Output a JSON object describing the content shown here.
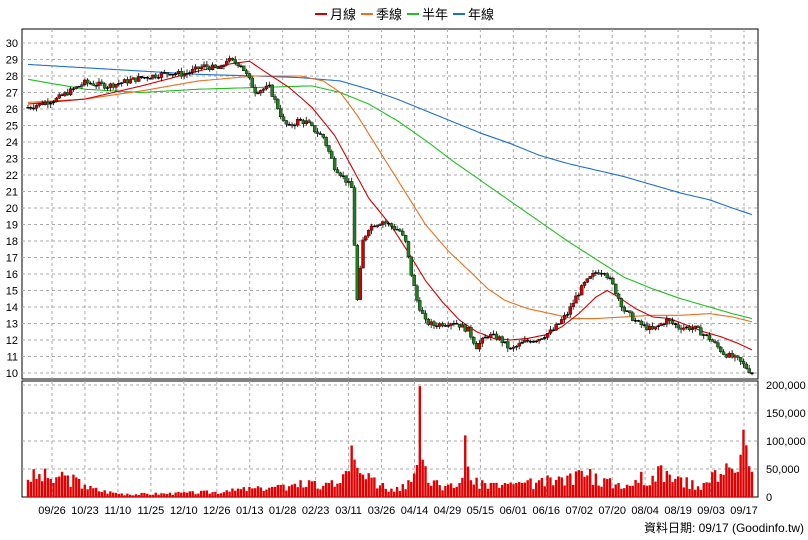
{
  "chart_data": {
    "type": "candlestick",
    "source_credit": "資料日期: 09/17 (Goodinfo.tw)",
    "legend": [
      {
        "name": "月線",
        "color": "#d40000"
      },
      {
        "name": "季線",
        "color": "#e87020"
      },
      {
        "name": "半年",
        "color": "#20c020"
      },
      {
        "name": "年線",
        "color": "#1f6fd0"
      }
    ],
    "price_axis": {
      "min": 10,
      "max": 30,
      "step": 1,
      "ticks": [
        "10",
        "11",
        "12",
        "13",
        "14",
        "15",
        "16",
        "17",
        "18",
        "19",
        "20",
        "21",
        "22",
        "23",
        "24",
        "25",
        "26",
        "27",
        "28",
        "29",
        "30"
      ]
    },
    "volume_axis": {
      "min": 0,
      "max": 200000,
      "ticks": [
        "0",
        "50,000",
        "100,000",
        "150,000",
        "200,000"
      ],
      "tick_values": [
        0,
        50000,
        100000,
        150000,
        200000
      ]
    },
    "grid": true,
    "legend_position": "top-center",
    "x_labels": [
      "09/26",
      "10/23",
      "11/10",
      "11/25",
      "12/10",
      "12/26",
      "01/13",
      "01/28",
      "02/23",
      "03/11",
      "03/26",
      "04/14",
      "04/29",
      "05/15",
      "06/01",
      "06/16",
      "07/02",
      "07/20",
      "08/04",
      "08/19",
      "09/03",
      "09/17"
    ],
    "price_close_path": [
      [
        0,
        26.1
      ],
      [
        10,
        26.6
      ],
      [
        20,
        27.6
      ],
      [
        28,
        27.4
      ],
      [
        40,
        27.9
      ],
      [
        50,
        28.2
      ],
      [
        55,
        28.1
      ],
      [
        62,
        28.6
      ],
      [
        68,
        28.4
      ],
      [
        70,
        29.0
      ],
      [
        75,
        28.7
      ],
      [
        80,
        27.1
      ],
      [
        85,
        27.3
      ],
      [
        88,
        26.1
      ],
      [
        90,
        25.2
      ],
      [
        92,
        24.9
      ],
      [
        95,
        25.3
      ],
      [
        98,
        25.2
      ],
      [
        101,
        24.7
      ],
      [
        104,
        24.3
      ],
      [
        108,
        22.5
      ],
      [
        111,
        21.9
      ],
      [
        114,
        21.2
      ],
      [
        116,
        14.4
      ],
      [
        118,
        18.0
      ],
      [
        120,
        18.8
      ],
      [
        122,
        19.0
      ],
      [
        125,
        19.2
      ],
      [
        128,
        18.9
      ],
      [
        131,
        18.6
      ],
      [
        133,
        17.9
      ],
      [
        135,
        16.0
      ],
      [
        137,
        14.4
      ],
      [
        140,
        13.1
      ],
      [
        143,
        12.9
      ],
      [
        146,
        13.0
      ],
      [
        150,
        13.1
      ],
      [
        155,
        12.6
      ],
      [
        158,
        11.6
      ],
      [
        162,
        12.3
      ],
      [
        166,
        12.1
      ],
      [
        170,
        11.4
      ],
      [
        175,
        11.9
      ],
      [
        180,
        12.1
      ],
      [
        185,
        12.6
      ],
      [
        190,
        13.6
      ],
      [
        193,
        14.6
      ],
      [
        196,
        15.4
      ],
      [
        200,
        16.1
      ],
      [
        203,
        16.2
      ],
      [
        206,
        15.3
      ],
      [
        210,
        13.8
      ],
      [
        215,
        13.0
      ],
      [
        220,
        12.6
      ],
      [
        225,
        13.2
      ],
      [
        229,
        12.8
      ],
      [
        235,
        12.7
      ],
      [
        240,
        12.1
      ],
      [
        245,
        11.2
      ],
      [
        250,
        10.8
      ],
      [
        255,
        10.0
      ]
    ],
    "ma_monthly": [
      [
        0,
        26.3
      ],
      [
        20,
        26.6
      ],
      [
        40,
        27.4
      ],
      [
        60,
        28.3
      ],
      [
        70,
        28.7
      ],
      [
        78,
        28.9
      ],
      [
        84,
        28.2
      ],
      [
        92,
        27.3
      ],
      [
        100,
        26.1
      ],
      [
        108,
        24.4
      ],
      [
        114,
        22.5
      ],
      [
        120,
        20.6
      ],
      [
        128,
        18.9
      ],
      [
        134,
        17.3
      ],
      [
        140,
        15.6
      ],
      [
        146,
        14.3
      ],
      [
        152,
        13.2
      ],
      [
        158,
        12.5
      ],
      [
        164,
        12.1
      ],
      [
        170,
        12.0
      ],
      [
        176,
        12.1
      ],
      [
        182,
        12.3
      ],
      [
        188,
        12.8
      ],
      [
        194,
        13.6
      ],
      [
        200,
        14.6
      ],
      [
        204,
        15.0
      ],
      [
        208,
        14.6
      ],
      [
        214,
        13.9
      ],
      [
        220,
        13.4
      ],
      [
        226,
        13.3
      ],
      [
        232,
        12.9
      ],
      [
        238,
        12.5
      ],
      [
        244,
        12.2
      ],
      [
        250,
        11.8
      ],
      [
        255,
        11.4
      ]
    ],
    "ma_quarterly": [
      [
        0,
        26.4
      ],
      [
        20,
        26.6
      ],
      [
        40,
        27.1
      ],
      [
        60,
        27.7
      ],
      [
        80,
        28.0
      ],
      [
        96,
        28.0
      ],
      [
        104,
        27.7
      ],
      [
        110,
        27.0
      ],
      [
        116,
        25.6
      ],
      [
        124,
        23.4
      ],
      [
        132,
        21.2
      ],
      [
        140,
        19.0
      ],
      [
        148,
        17.4
      ],
      [
        156,
        16.1
      ],
      [
        162,
        15.1
      ],
      [
        168,
        14.4
      ],
      [
        176,
        13.9
      ],
      [
        184,
        13.6
      ],
      [
        192,
        13.3
      ],
      [
        200,
        13.3
      ],
      [
        210,
        13.4
      ],
      [
        220,
        13.5
      ],
      [
        230,
        13.5
      ],
      [
        240,
        13.6
      ],
      [
        248,
        13.4
      ],
      [
        255,
        13.1
      ]
    ],
    "ma_halfyear": [
      [
        0,
        27.8
      ],
      [
        20,
        27.2
      ],
      [
        40,
        27.0
      ],
      [
        60,
        27.2
      ],
      [
        80,
        27.3
      ],
      [
        100,
        27.4
      ],
      [
        110,
        27.0
      ],
      [
        120,
        26.3
      ],
      [
        130,
        25.3
      ],
      [
        140,
        24.1
      ],
      [
        150,
        22.8
      ],
      [
        160,
        21.6
      ],
      [
        170,
        20.4
      ],
      [
        180,
        19.2
      ],
      [
        190,
        18.0
      ],
      [
        200,
        16.9
      ],
      [
        210,
        15.8
      ],
      [
        220,
        15.1
      ],
      [
        230,
        14.5
      ],
      [
        240,
        14.0
      ],
      [
        248,
        13.6
      ],
      [
        255,
        13.3
      ]
    ],
    "ma_yearly": [
      [
        0,
        28.7
      ],
      [
        20,
        28.5
      ],
      [
        40,
        28.3
      ],
      [
        60,
        28.1
      ],
      [
        80,
        28.0
      ],
      [
        96,
        27.9
      ],
      [
        110,
        27.7
      ],
      [
        120,
        27.2
      ],
      [
        130,
        26.6
      ],
      [
        140,
        25.9
      ],
      [
        150,
        25.2
      ],
      [
        160,
        24.5
      ],
      [
        170,
        23.9
      ],
      [
        180,
        23.2
      ],
      [
        190,
        22.7
      ],
      [
        200,
        22.3
      ],
      [
        210,
        21.9
      ],
      [
        220,
        21.4
      ],
      [
        230,
        20.9
      ],
      [
        240,
        20.5
      ],
      [
        248,
        20.0
      ],
      [
        255,
        19.6
      ]
    ],
    "volume_spikes": [
      [
        9,
        25000
      ],
      [
        12,
        45000
      ],
      [
        17,
        35000
      ],
      [
        20,
        22000
      ],
      [
        27,
        12000
      ],
      [
        35,
        6000
      ],
      [
        52,
        8000
      ],
      [
        70,
        12000
      ],
      [
        74,
        15000
      ],
      [
        78,
        18000
      ],
      [
        82,
        17000
      ],
      [
        86,
        18000
      ],
      [
        90,
        22000
      ],
      [
        93,
        22000
      ],
      [
        96,
        30000
      ],
      [
        100,
        28000
      ],
      [
        104,
        20000
      ],
      [
        107,
        30000
      ],
      [
        110,
        25000
      ],
      [
        114,
        92000
      ],
      [
        116,
        52000
      ],
      [
        118,
        40000
      ],
      [
        122,
        35000
      ],
      [
        125,
        25000
      ],
      [
        128,
        15000
      ],
      [
        130,
        18000
      ],
      [
        132,
        23000
      ],
      [
        134,
        30000
      ],
      [
        136,
        42000
      ],
      [
        138,
        198000
      ],
      [
        140,
        55000
      ],
      [
        144,
        30000
      ],
      [
        148,
        22000
      ],
      [
        152,
        25000
      ],
      [
        154,
        110000
      ],
      [
        156,
        30000
      ],
      [
        160,
        30000
      ],
      [
        164,
        25000
      ],
      [
        168,
        25000
      ],
      [
        172,
        25000
      ],
      [
        176,
        30000
      ],
      [
        180,
        30000
      ],
      [
        184,
        35000
      ],
      [
        188,
        35000
      ],
      [
        191,
        42000
      ],
      [
        194,
        48000
      ],
      [
        198,
        50000
      ],
      [
        200,
        42000
      ],
      [
        204,
        32000
      ],
      [
        208,
        25000
      ],
      [
        212,
        20000
      ],
      [
        216,
        45000
      ],
      [
        220,
        38000
      ],
      [
        222,
        55000
      ],
      [
        226,
        40000
      ],
      [
        230,
        35000
      ],
      [
        234,
        30000
      ],
      [
        238,
        25000
      ],
      [
        242,
        48000
      ],
      [
        246,
        60000
      ],
      [
        250,
        45000
      ],
      [
        252,
        120000
      ],
      [
        254,
        55000
      ],
      [
        255,
        45000
      ]
    ]
  }
}
